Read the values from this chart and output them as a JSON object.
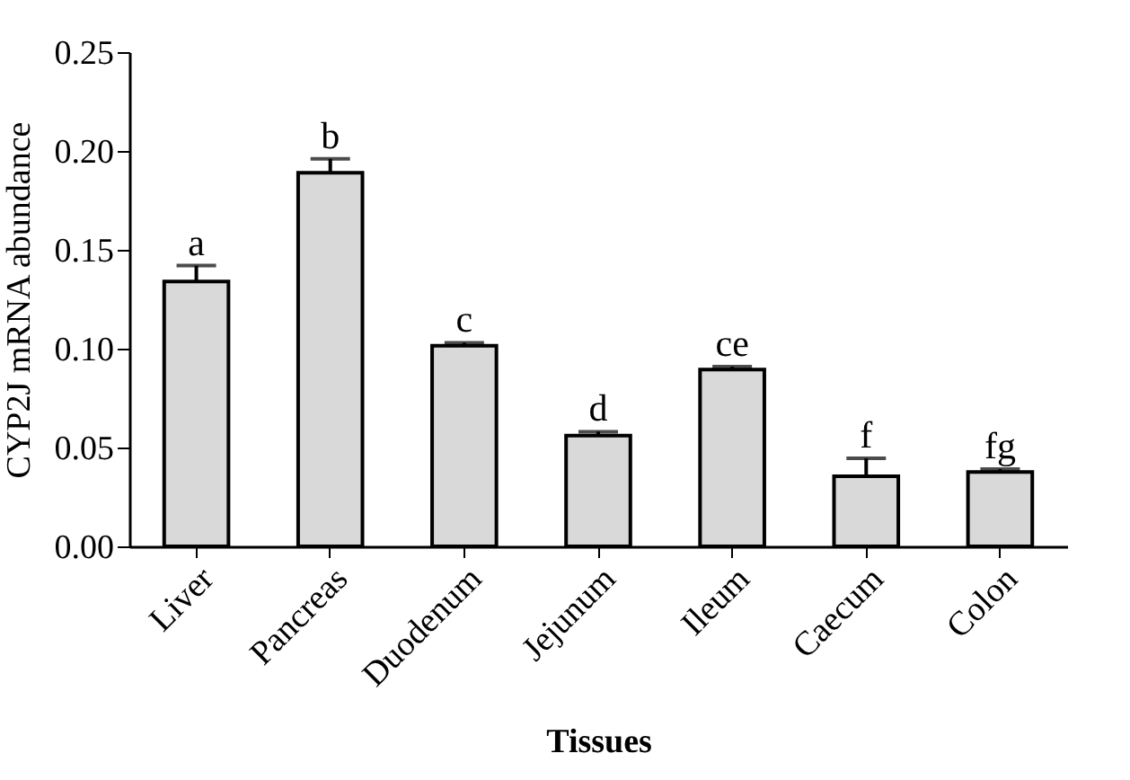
{
  "chart_data": {
    "type": "bar",
    "xlabel": "Tissues",
    "ylabel": "CYP2J mRNA abundance",
    "categories": [
      "Liver",
      "Pancreas",
      "Duodenum",
      "Jejunum",
      "Ileum",
      "Caecum",
      "Colon"
    ],
    "values": [
      0.134,
      0.189,
      0.1015,
      0.056,
      0.0894,
      0.0355,
      0.0376
    ],
    "errors": [
      0.008,
      0.007,
      0.0015,
      0.002,
      0.0015,
      0.009,
      0.0015
    ],
    "color": "#d9d9d9",
    "ylim": [
      0,
      0.25
    ],
    "yticks": [
      {
        "value": 0,
        "label": "0.00"
      },
      {
        "value": 0.05,
        "label": "0.05"
      },
      {
        "value": 0.1,
        "label": "0.10"
      },
      {
        "value": 0.15,
        "label": "0.15"
      },
      {
        "value": 0.2,
        "label": "0.20"
      },
      {
        "value": 0.25,
        "label": "0.25"
      }
    ],
    "annotations": [
      {
        "text": "a",
        "x": "Liver",
        "y": 0.142
      },
      {
        "text": "b",
        "x": "Pancreas",
        "y": 0.196
      },
      {
        "text": "c",
        "x": "Duodenum",
        "y": 0.103
      },
      {
        "text": "d",
        "x": "Jejunum",
        "y": 0.058
      },
      {
        "text": "ce",
        "x": "Ileum",
        "y": 0.0909
      },
      {
        "text": "f",
        "x": "Caecum",
        "y": 0.0445
      },
      {
        "text": "fg",
        "x": "Colon",
        "y": 0.0391
      }
    ],
    "grid": false
  }
}
